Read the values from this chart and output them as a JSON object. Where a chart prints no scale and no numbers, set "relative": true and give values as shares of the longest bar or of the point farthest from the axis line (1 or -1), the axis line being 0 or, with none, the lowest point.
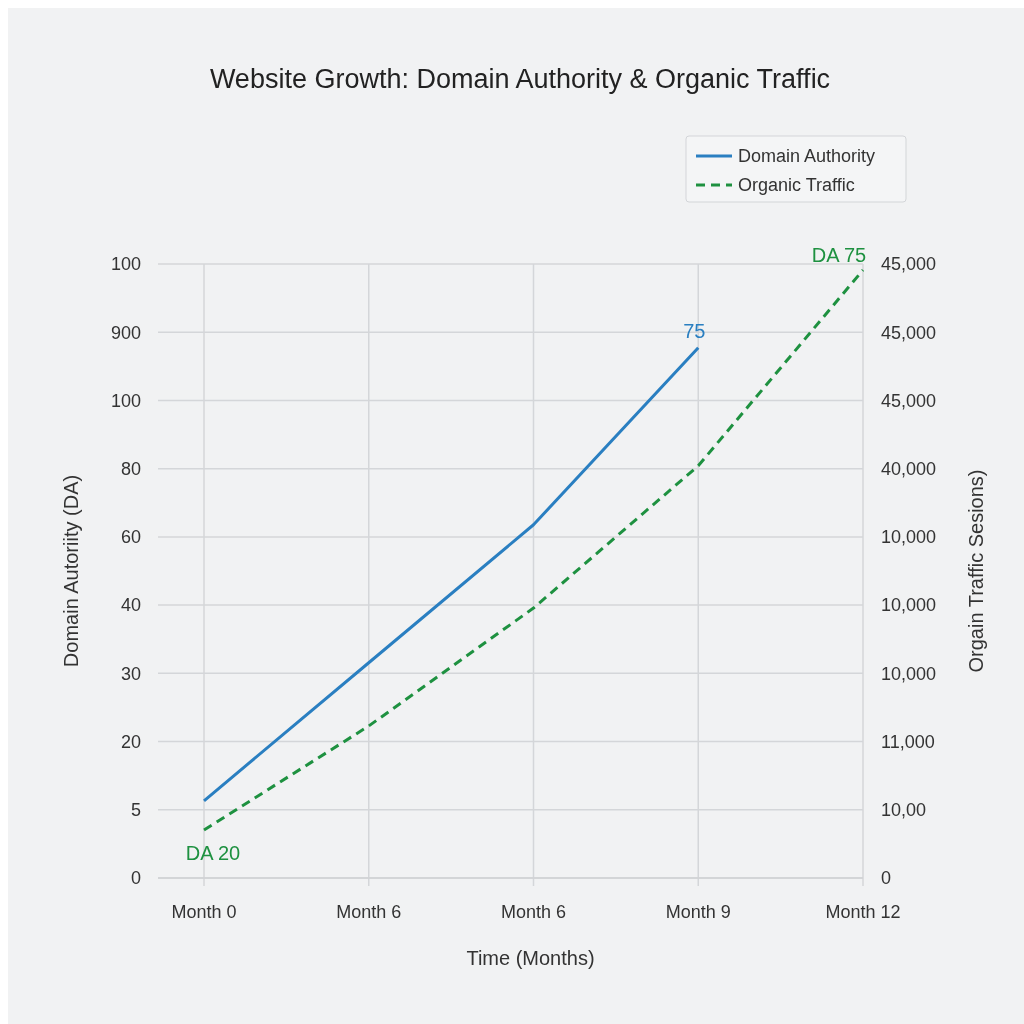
{
  "chart_data": {
    "type": "line",
    "title": "Website Growth: Domain Authority & Organic Traffic",
    "xlabel": "Time (Months)",
    "ylabel": "Domain Autoriity (DA)",
    "y2label": "Orgain Traffic Sesions)",
    "categories": [
      "Month 0",
      "Month 6",
      "Month 6",
      "Month 9",
      "Month 12"
    ],
    "relative": true,
    "grid": true,
    "legend": "top right",
    "series": [
      {
        "name": "Domain Authority",
        "color": "#2a7fc1",
        "line_style": "solid",
        "values": [
          0.127,
          0.354,
          0.581,
          0.872,
          null
        ]
      },
      {
        "name": "Organic Traffic",
        "color": "#1e9140",
        "line_style": "dashed",
        "values": [
          0.079,
          0.25,
          0.444,
          0.678,
          1
        ]
      }
    ],
    "annotations": [
      "75",
      {
        "text": "DA 75",
        "x": "Month 12",
        "y": 1
      },
      {
        "text": "DA 20",
        "x": "Month 0",
        "y": 0.079
      },
      "0",
      "5",
      "20",
      "30",
      "40",
      "60",
      "80",
      "100",
      "900",
      "100",
      "0",
      "10,00",
      "11,000",
      "10,000",
      "10,000",
      "10,000",
      "40,000",
      "45,000",
      "45,000",
      "45,000"
    ]
  }
}
